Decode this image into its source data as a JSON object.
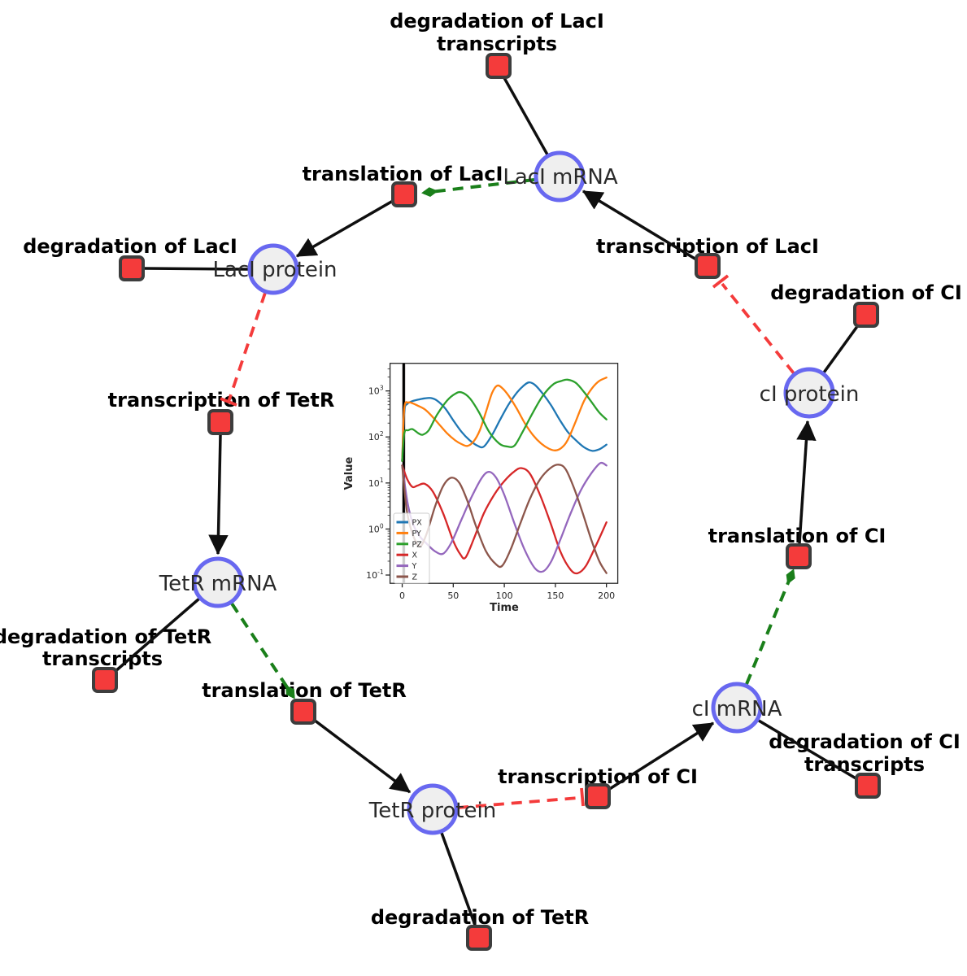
{
  "diagram": {
    "species": {
      "laci_mrna": {
        "label": "LacI mRNA"
      },
      "laci_protein": {
        "label": "LacI protein"
      },
      "ci_protein": {
        "label": "cI protein"
      },
      "tetr_mrna": {
        "label": "TetR mRNA"
      },
      "ci_mrna": {
        "label": "cI mRNA"
      },
      "tetr_protein": {
        "label": "TetR protein"
      }
    },
    "reactions": {
      "deg_laci_transcripts": {
        "line1": "degradation of LacI",
        "line2": "transcripts"
      },
      "translation_laci": {
        "label": "translation of LacI"
      },
      "transcription_laci": {
        "label": "transcription of LacI"
      },
      "deg_laci": {
        "label": "degradation of LacI"
      },
      "deg_ci": {
        "label": "degradation of CI"
      },
      "transcription_tetr": {
        "label": "transcription of TetR"
      },
      "translation_ci": {
        "label": "translation of CI"
      },
      "deg_tetr_transcripts": {
        "line1": "degradation of TetR",
        "line2": "transcripts"
      },
      "translation_tetr": {
        "label": "translation of TetR"
      },
      "deg_ci_transcripts": {
        "line1": "degradation of CI",
        "line2": "transcripts"
      },
      "transcription_ci": {
        "label": "transcription of CI"
      },
      "deg_tetr": {
        "label": "degradation of TetR"
      }
    },
    "colors": {
      "species_fill": "#efefef",
      "species_border": "#6868f0",
      "reaction_fill": "#f43b3b",
      "reaction_border": "#3d3d3d",
      "consumption_production_edge": "#0f0f0f",
      "catalysis_edge": "#1a7f1a",
      "inhibition_edge": "#f43b3b"
    }
  },
  "chart_data": {
    "type": "line",
    "title": "",
    "xlabel": "Time",
    "ylabel": "Value",
    "x_ticks": [
      0,
      50,
      100,
      150,
      200
    ],
    "y_tick_exponents": [
      -1,
      0,
      1,
      2,
      3
    ],
    "xlim": [
      -11.9,
      211.1
    ],
    "ylim_log10": [
      -1.18,
      3.6
    ],
    "y_scale": "log",
    "grid": false,
    "legend_position": "lower left",
    "t0_marker": {
      "t": 1.5,
      "color": "#000000"
    },
    "series": [
      {
        "name": "PX",
        "color": "#1f77b4",
        "points": [
          [
            0,
            30
          ],
          [
            2,
            350
          ],
          [
            5,
            520
          ],
          [
            10,
            600
          ],
          [
            16,
            650
          ],
          [
            22,
            690
          ],
          [
            28,
            700
          ],
          [
            34,
            620
          ],
          [
            42,
            420
          ],
          [
            50,
            230
          ],
          [
            58,
            130
          ],
          [
            66,
            85
          ],
          [
            74,
            64
          ],
          [
            80,
            62
          ],
          [
            88,
            110
          ],
          [
            96,
            240
          ],
          [
            104,
            500
          ],
          [
            112,
            900
          ],
          [
            118,
            1250
          ],
          [
            124,
            1530
          ],
          [
            130,
            1350
          ],
          [
            138,
            850
          ],
          [
            146,
            480
          ],
          [
            154,
            240
          ],
          [
            162,
            130
          ],
          [
            170,
            85
          ],
          [
            178,
            60
          ],
          [
            186,
            50
          ],
          [
            193,
            54
          ],
          [
            200,
            68
          ]
        ]
      },
      {
        "name": "PY",
        "color": "#ff7f0e",
        "points": [
          [
            0,
            30
          ],
          [
            2,
            420
          ],
          [
            6,
            560
          ],
          [
            10,
            540
          ],
          [
            16,
            470
          ],
          [
            22,
            400
          ],
          [
            28,
            300
          ],
          [
            36,
            190
          ],
          [
            44,
            120
          ],
          [
            52,
            84
          ],
          [
            58,
            70
          ],
          [
            64,
            64
          ],
          [
            70,
            80
          ],
          [
            76,
            140
          ],
          [
            82,
            350
          ],
          [
            88,
            900
          ],
          [
            93,
            1300
          ],
          [
            98,
            1150
          ],
          [
            104,
            800
          ],
          [
            112,
            420
          ],
          [
            120,
            200
          ],
          [
            128,
            110
          ],
          [
            136,
            72
          ],
          [
            144,
            55
          ],
          [
            150,
            51
          ],
          [
            156,
            58
          ],
          [
            162,
            85
          ],
          [
            170,
            220
          ],
          [
            178,
            600
          ],
          [
            186,
            1150
          ],
          [
            193,
            1650
          ],
          [
            200,
            1950
          ]
        ]
      },
      {
        "name": "PZ",
        "color": "#2ca02c",
        "points": [
          [
            0,
            30
          ],
          [
            2,
            120
          ],
          [
            6,
            140
          ],
          [
            10,
            148
          ],
          [
            16,
            120
          ],
          [
            20,
            112
          ],
          [
            26,
            140
          ],
          [
            34,
            300
          ],
          [
            44,
            620
          ],
          [
            52,
            870
          ],
          [
            58,
            930
          ],
          [
            66,
            700
          ],
          [
            75,
            350
          ],
          [
            85,
            130
          ],
          [
            95,
            72
          ],
          [
            103,
            62
          ],
          [
            110,
            65
          ],
          [
            118,
            130
          ],
          [
            128,
            340
          ],
          [
            138,
            800
          ],
          [
            148,
            1400
          ],
          [
            156,
            1650
          ],
          [
            162,
            1760
          ],
          [
            170,
            1500
          ],
          [
            178,
            950
          ],
          [
            186,
            550
          ],
          [
            193,
            340
          ],
          [
            200,
            240
          ]
        ]
      },
      {
        "name": "X",
        "color": "#d62728",
        "points": [
          [
            0,
            24
          ],
          [
            5,
            12
          ],
          [
            10,
            8.2
          ],
          [
            15,
            8.8
          ],
          [
            22,
            9.6
          ],
          [
            30,
            6.5
          ],
          [
            40,
            2.2
          ],
          [
            50,
            0.55
          ],
          [
            57,
            0.28
          ],
          [
            62,
            0.24
          ],
          [
            70,
            0.6
          ],
          [
            80,
            2.2
          ],
          [
            90,
            5.5
          ],
          [
            100,
            11
          ],
          [
            110,
            18
          ],
          [
            117,
            21
          ],
          [
            125,
            16
          ],
          [
            135,
            5.5
          ],
          [
            145,
            1.4
          ],
          [
            155,
            0.32
          ],
          [
            165,
            0.13
          ],
          [
            172,
            0.11
          ],
          [
            180,
            0.16
          ],
          [
            190,
            0.45
          ],
          [
            200,
            1.4
          ]
        ]
      },
      {
        "name": "Y",
        "color": "#9467bd",
        "points": [
          [
            0,
            24
          ],
          [
            5,
            4
          ],
          [
            10,
            1.4
          ],
          [
            16,
            0.75
          ],
          [
            24,
            0.48
          ],
          [
            32,
            0.33
          ],
          [
            40,
            0.29
          ],
          [
            48,
            0.5
          ],
          [
            58,
            1.6
          ],
          [
            68,
            5
          ],
          [
            78,
            13
          ],
          [
            85,
            17.5
          ],
          [
            92,
            13
          ],
          [
            100,
            5.5
          ],
          [
            110,
            1.3
          ],
          [
            120,
            0.35
          ],
          [
            130,
            0.14
          ],
          [
            138,
            0.12
          ],
          [
            146,
            0.2
          ],
          [
            155,
            0.6
          ],
          [
            165,
            2.2
          ],
          [
            175,
            7
          ],
          [
            185,
            16
          ],
          [
            194,
            27
          ],
          [
            200,
            24
          ]
        ]
      },
      {
        "name": "Z",
        "color": "#8c564b",
        "points": [
          [
            0,
            24
          ],
          [
            4,
            3
          ],
          [
            8,
            1.1
          ],
          [
            13,
            0.55
          ],
          [
            18,
            0.42
          ],
          [
            24,
            0.8
          ],
          [
            32,
            3
          ],
          [
            40,
            8.5
          ],
          [
            48,
            13
          ],
          [
            56,
            10
          ],
          [
            64,
            4
          ],
          [
            72,
            1.2
          ],
          [
            82,
            0.33
          ],
          [
            92,
            0.17
          ],
          [
            98,
            0.16
          ],
          [
            106,
            0.35
          ],
          [
            115,
            1.2
          ],
          [
            125,
            4.5
          ],
          [
            135,
            12
          ],
          [
            145,
            21
          ],
          [
            153,
            25
          ],
          [
            160,
            20
          ],
          [
            168,
            8
          ],
          [
            176,
            2.5
          ],
          [
            185,
            0.6
          ],
          [
            193,
            0.2
          ],
          [
            200,
            0.11
          ]
        ]
      }
    ]
  }
}
